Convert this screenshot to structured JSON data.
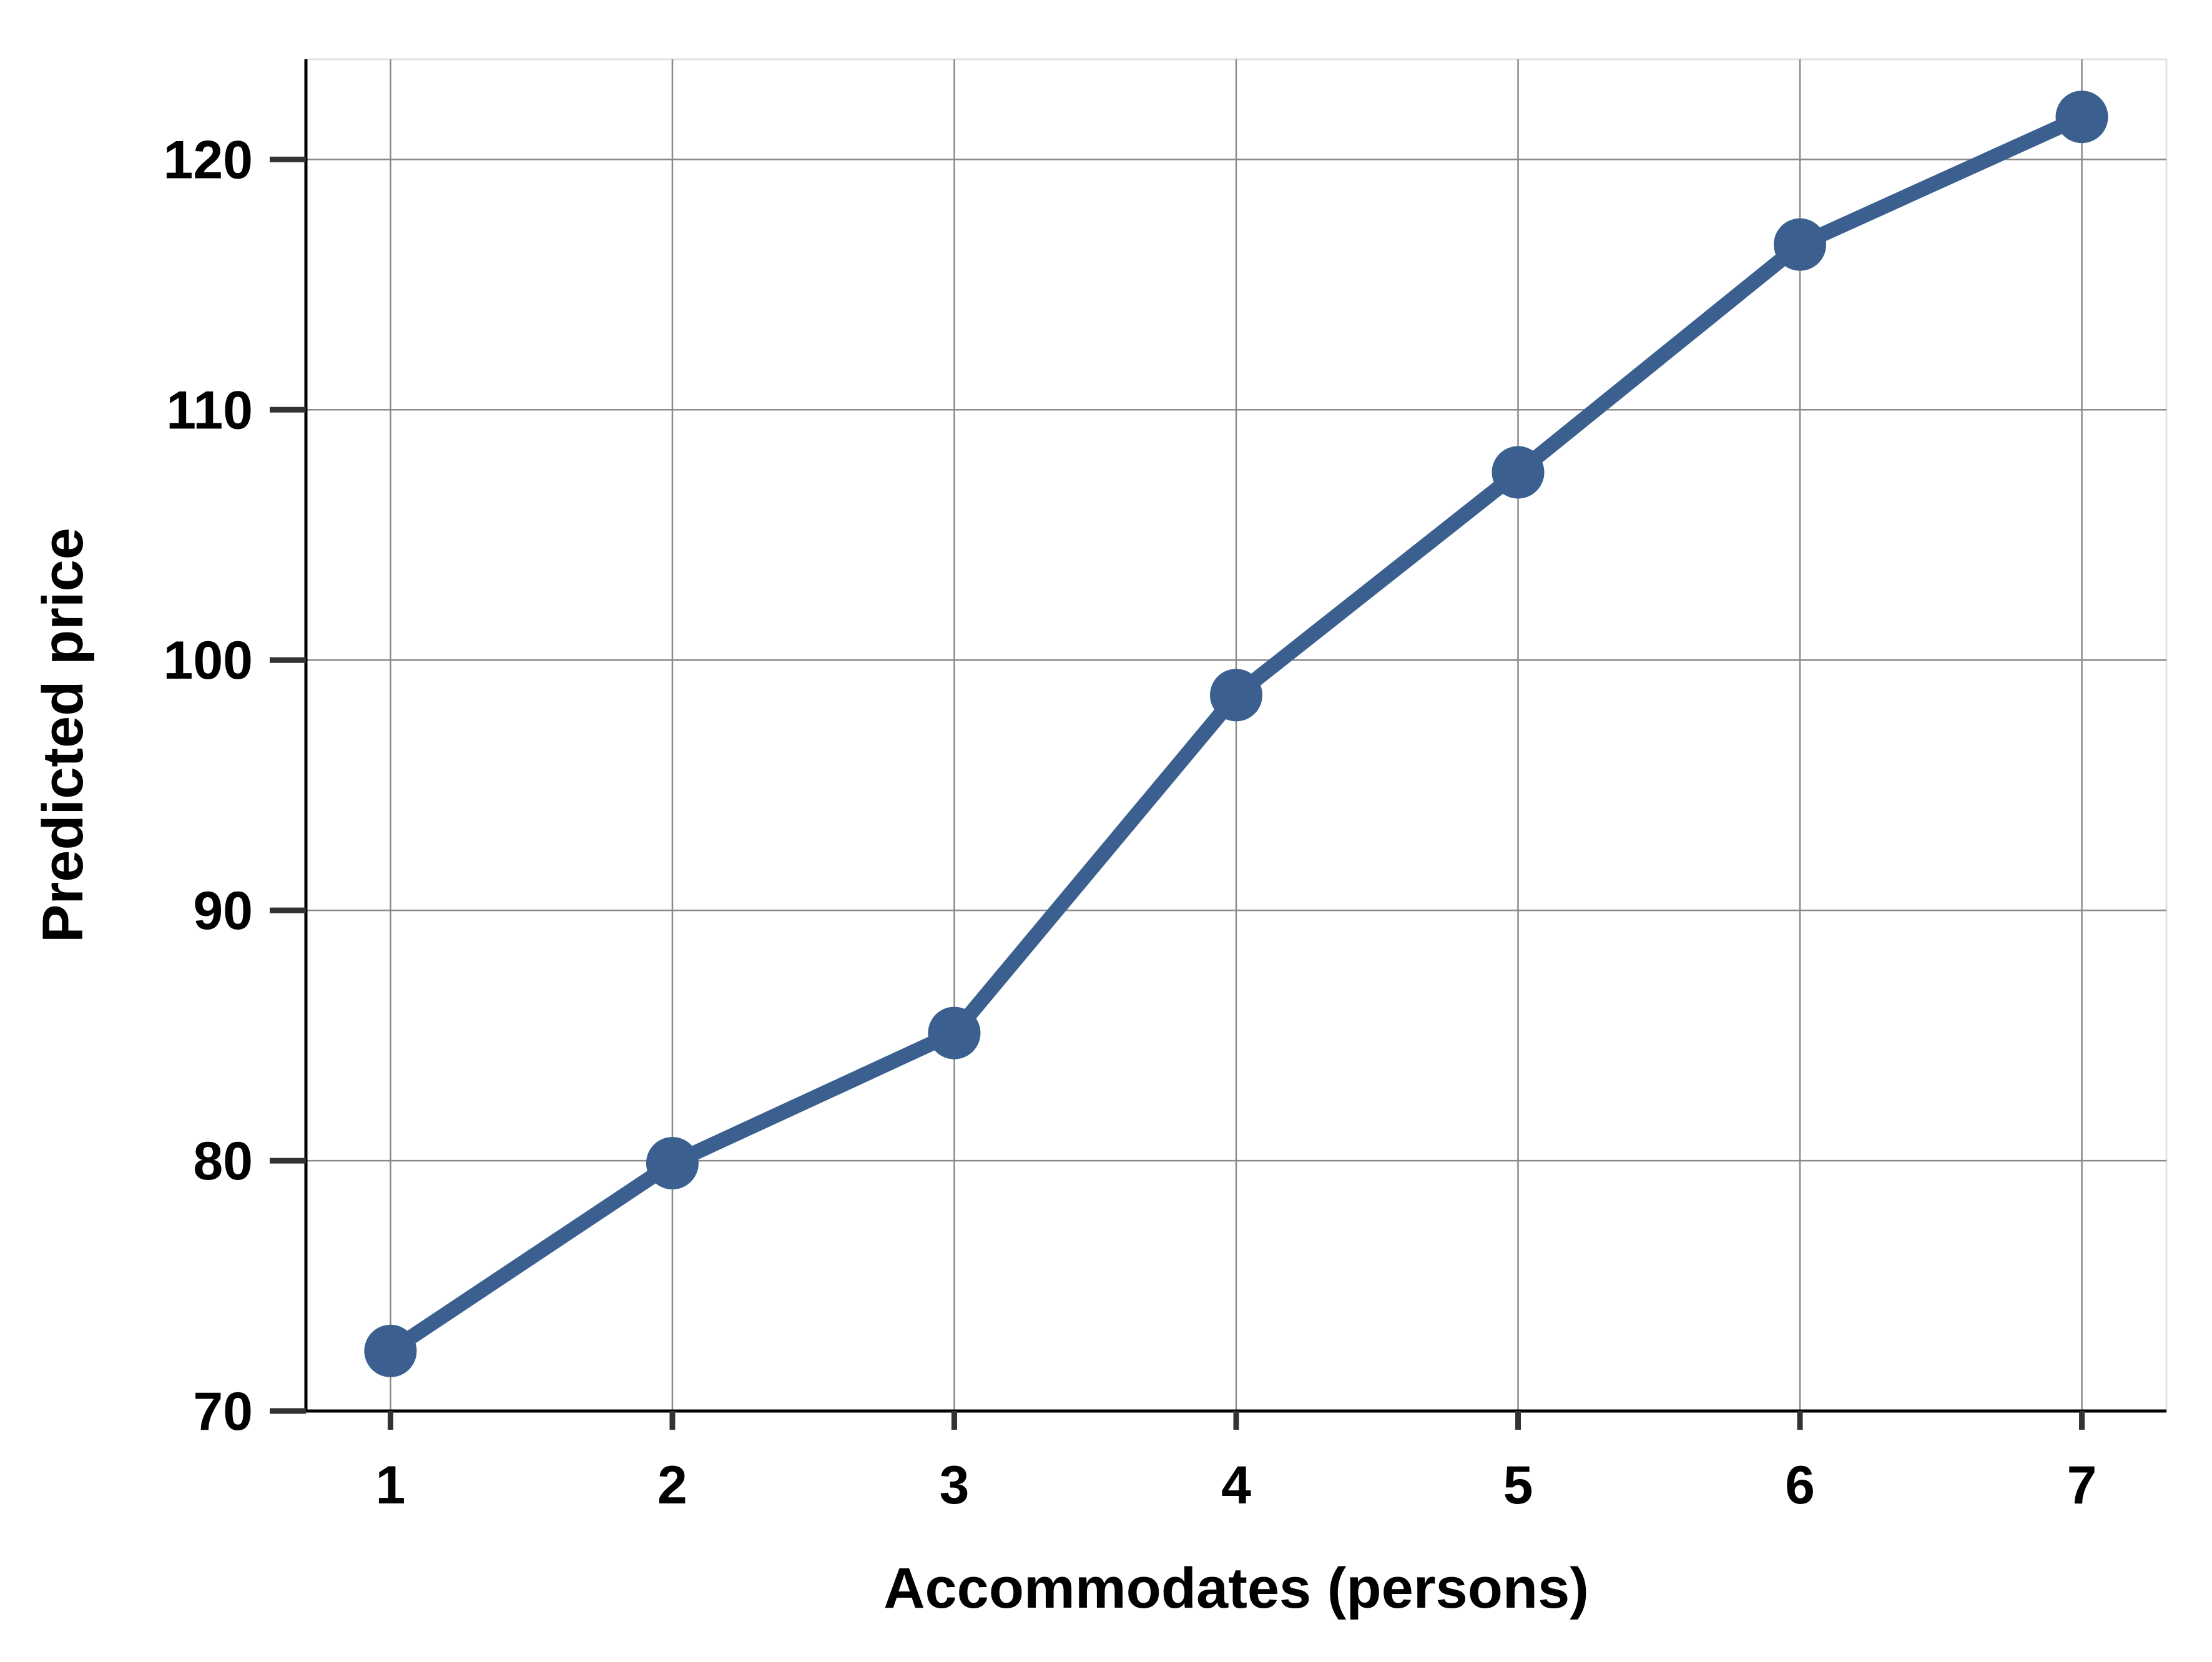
{
  "chart_data": {
    "type": "line",
    "title": "",
    "xlabel": "Accommodates (persons)",
    "ylabel": "Predicted price",
    "x": [
      1,
      2,
      3,
      4,
      5,
      6,
      7
    ],
    "x_tick_labels": [
      "1",
      "2",
      "3",
      "4",
      "5",
      "6",
      "7"
    ],
    "y_ticks": [
      70,
      80,
      90,
      100,
      110,
      120
    ],
    "y_tick_labels": [
      "70",
      "80",
      "90",
      "100",
      "110",
      "120"
    ],
    "xlim": [
      0.7,
      7.3
    ],
    "ylim": [
      70,
      124
    ],
    "grid": true,
    "series": [
      {
        "values": [
          72.4,
          79.9,
          85.1,
          98.6,
          107.5,
          116.6,
          121.7
        ],
        "color": "#3b5f8e"
      }
    ]
  }
}
